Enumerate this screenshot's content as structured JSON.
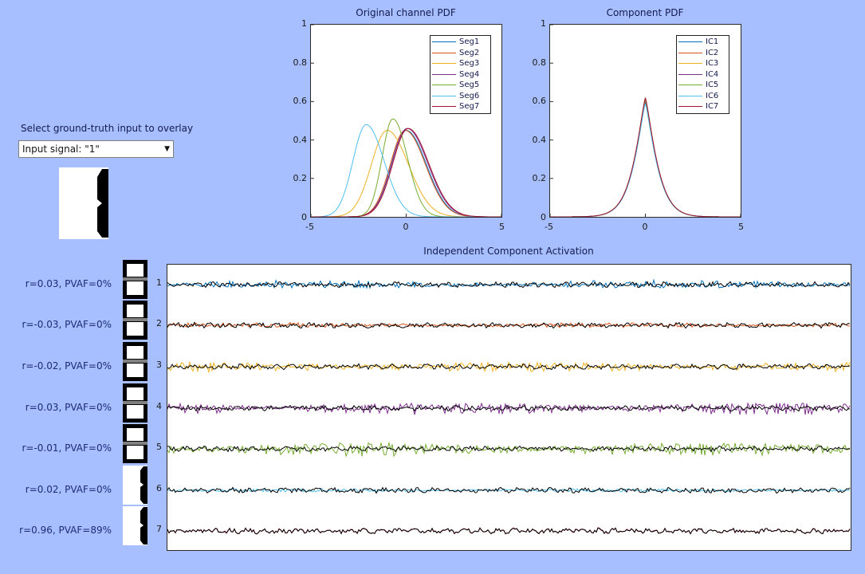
{
  "overlay": {
    "label": "Select ground-truth input to overlay",
    "selected": "Input signal: \"1\""
  },
  "pdf_left": {
    "title": "Original channel PDF",
    "legend": [
      "Seg1",
      "Seg2",
      "Seg3",
      "Seg4",
      "Seg5",
      "Seg6",
      "Seg7"
    ]
  },
  "pdf_right": {
    "title": "Component PDF",
    "legend": [
      "IC1",
      "IC2",
      "IC3",
      "IC4",
      "IC5",
      "IC6",
      "IC7"
    ]
  },
  "activation": {
    "title": "Independent Component Activation",
    "rows": [
      {
        "index": "1",
        "stat": "r=0.03, PVAF=0%"
      },
      {
        "index": "2",
        "stat": "r=-0.03, PVAF=0%"
      },
      {
        "index": "3",
        "stat": "r=-0.02, PVAF=0%"
      },
      {
        "index": "4",
        "stat": "r=0.03, PVAF=0%"
      },
      {
        "index": "5",
        "stat": "r=-0.01, PVAF=0%"
      },
      {
        "index": "6",
        "stat": "r=0.02, PVAF=0%"
      },
      {
        "index": "7",
        "stat": "r=0.96, PVAF=89%"
      }
    ]
  },
  "colors": {
    "series": [
      "#0072bd",
      "#d95319",
      "#edb120",
      "#7e2f8e",
      "#77ac30",
      "#4dbeee",
      "#a2142f"
    ],
    "overlay": "#000000"
  },
  "chart_data": [
    {
      "type": "line",
      "title": "Original channel PDF",
      "xlim": [
        -5,
        5
      ],
      "ylim": [
        0,
        1
      ],
      "xticks": [
        "-5",
        "0",
        "5"
      ],
      "yticks": [
        "0",
        "0.2",
        "0.4",
        "0.6",
        "0.8",
        "1"
      ],
      "series": [
        {
          "name": "Seg1",
          "mean": 0.0,
          "peak": 0.45,
          "sd": 0.9
        },
        {
          "name": "Seg2",
          "mean": -0.05,
          "peak": 0.45,
          "sd": 0.9
        },
        {
          "name": "Seg3",
          "mean": -1.0,
          "peak": 0.45,
          "sd": 0.95
        },
        {
          "name": "Seg4",
          "mean": 0.05,
          "peak": 0.46,
          "sd": 0.92
        },
        {
          "name": "Seg5",
          "mean": -0.7,
          "peak": 0.51,
          "sd": 0.65
        },
        {
          "name": "Seg6",
          "mean": -2.1,
          "peak": 0.48,
          "sd": 0.8
        },
        {
          "name": "Seg7",
          "mean": 0.1,
          "peak": 0.46,
          "sd": 0.92
        }
      ]
    },
    {
      "type": "line",
      "title": "Component PDF",
      "xlim": [
        -5,
        5
      ],
      "ylim": [
        0,
        1
      ],
      "xticks": [
        "-5",
        "0",
        "5"
      ],
      "yticks": [
        "0",
        "0.2",
        "0.4",
        "0.6",
        "0.8",
        "1"
      ],
      "series": [
        {
          "name": "IC1",
          "mean": 0,
          "peak": 0.6
        },
        {
          "name": "IC2",
          "mean": 0,
          "peak": 0.62
        },
        {
          "name": "IC3",
          "mean": 0,
          "peak": 0.61
        },
        {
          "name": "IC4",
          "mean": 0,
          "peak": 0.6
        },
        {
          "name": "IC5",
          "mean": 0,
          "peak": 0.61
        },
        {
          "name": "IC6",
          "mean": 0,
          "peak": 0.59
        },
        {
          "name": "IC7",
          "mean": 0,
          "peak": 0.62
        }
      ]
    }
  ]
}
